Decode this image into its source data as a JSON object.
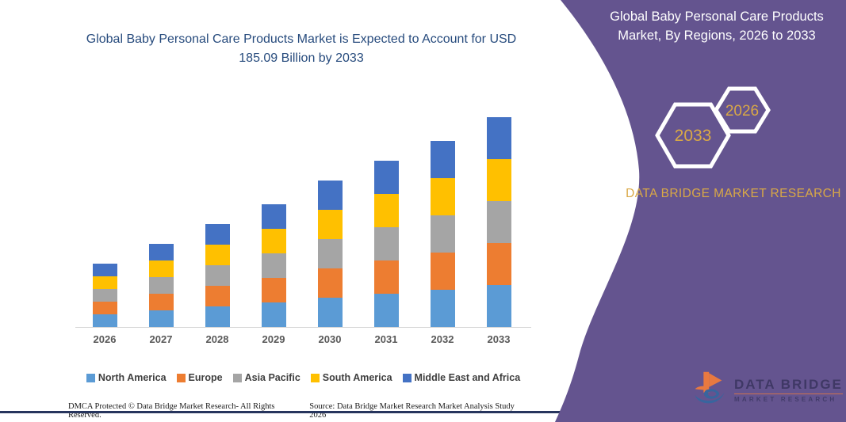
{
  "left_panel": {
    "title": "Global Baby Personal Care Products Market is Expected to Account for USD 185.09 Billion by 2033",
    "footer_left": "DMCA Protected © Data Bridge Market Research-  All Rights Reserved.",
    "footer_right": "Source: Data Bridge Market Research  Market Analysis Study 2026"
  },
  "right_panel": {
    "title": "Global Baby Personal Care Products Market, By Regions, 2026 to 2033",
    "hexagon_far_year": "2026",
    "hexagon_near_year": "2033",
    "brand_text": "DATA BRIDGE MARKET RESEARCH",
    "logo_line1": "DATA BRIDGE",
    "logo_line2": "MARKET RESEARCH",
    "colors": {
      "background": "#64548F",
      "accent_gold": "#D9A846",
      "logo_orange": "#E87940",
      "logo_blue": "#38659E"
    }
  },
  "chart_data": {
    "type": "bar",
    "stacked": true,
    "title": "Global Baby Personal Care Products Market is Expected to Account for USD 185.09 Billion by 2033",
    "unit": "USD Billion",
    "categories": [
      "2026",
      "2027",
      "2028",
      "2029",
      "2030",
      "2031",
      "2032",
      "2033"
    ],
    "series": [
      {
        "name": "North America",
        "color": "#5B9BD5",
        "values": [
          10.9,
          14.7,
          18.5,
          22.0,
          25.9,
          29.4,
          33.2,
          37.0
        ]
      },
      {
        "name": "Europe",
        "color": "#ED7D31",
        "values": [
          10.9,
          14.7,
          18.5,
          22.0,
          25.9,
          29.4,
          33.2,
          37.0
        ]
      },
      {
        "name": "Asia Pacific",
        "color": "#A5A5A5",
        "values": [
          10.9,
          14.7,
          18.5,
          22.0,
          25.9,
          29.4,
          33.2,
          37.0
        ]
      },
      {
        "name": "South America",
        "color": "#FFC000",
        "values": [
          10.9,
          14.7,
          18.5,
          22.0,
          25.9,
          29.4,
          33.2,
          37.0
        ]
      },
      {
        "name": "Middle East and Africa",
        "color": "#4472C4",
        "values": [
          10.9,
          14.7,
          18.5,
          22.0,
          25.9,
          29.4,
          33.2,
          37.0
        ]
      }
    ],
    "totals": [
      54.7,
      73.6,
      92.5,
      110.1,
      129.7,
      147.2,
      166.2,
      185.09
    ],
    "ylim": [
      0,
      185.09
    ],
    "y_axis_visible": false,
    "grid": false,
    "legend_position": "bottom"
  }
}
